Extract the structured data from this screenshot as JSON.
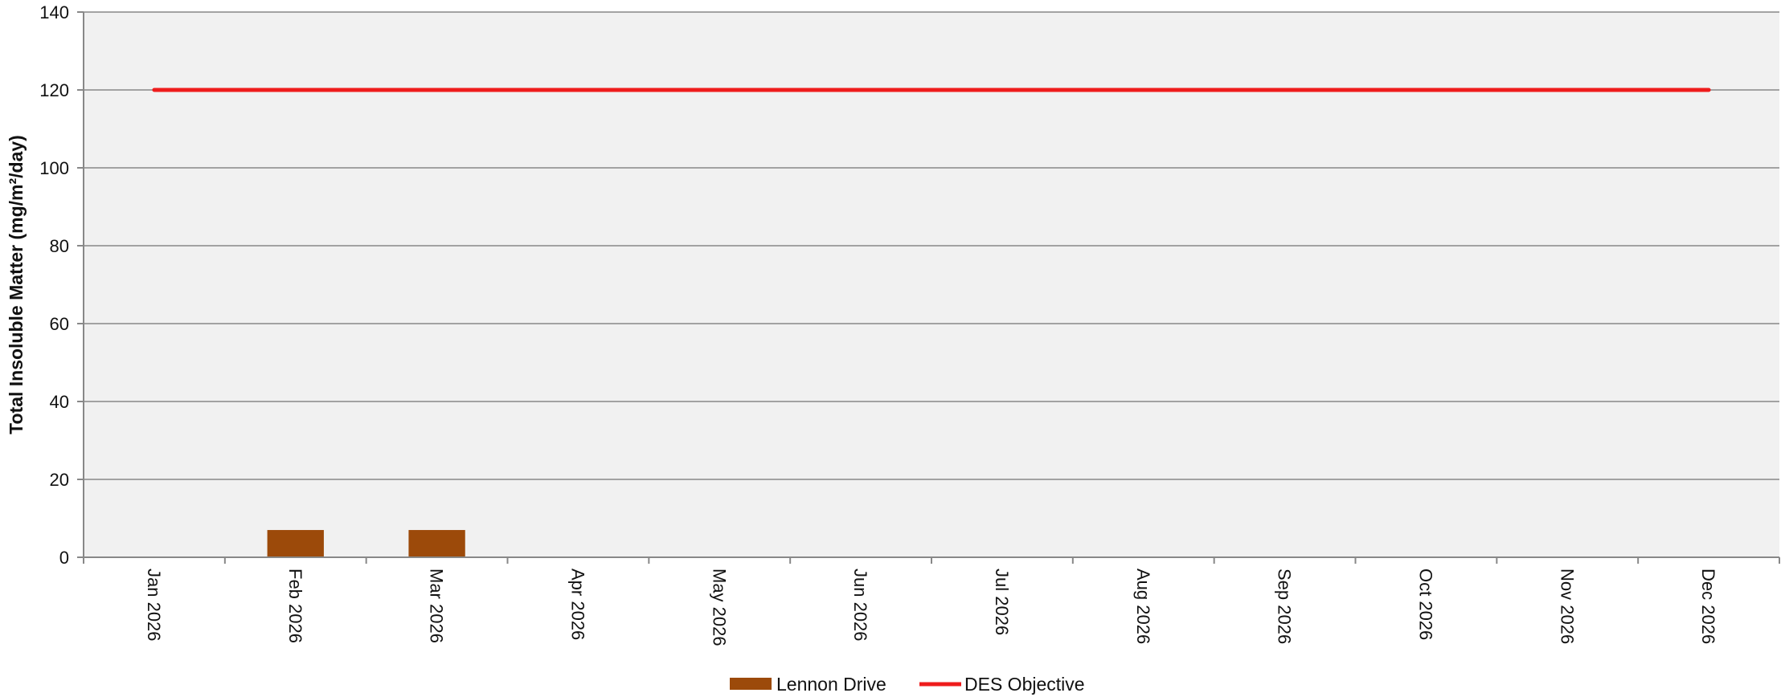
{
  "chart_data": {
    "type": "bar",
    "title": "",
    "xlabel": "",
    "ylabel": "Total Insoluble Matter (mg/m²/day)",
    "ylim": [
      0,
      140
    ],
    "yticks": [
      "0",
      "20",
      "40",
      "60",
      "80",
      "100",
      "120",
      "140"
    ],
    "categories": [
      "Jan 2026",
      "Feb 2026",
      "Mar 2026",
      "Apr 2026",
      "May 2026",
      "Jun 2026",
      "Jul 2026",
      "Aug 2026",
      "Sep 2026",
      "Oct 2026",
      "Nov 2026",
      "Dec 2026"
    ],
    "series": [
      {
        "name": "Lennon Drive",
        "kind": "bar",
        "color": "#9c4a0a",
        "values": [
          null,
          7,
          7,
          null,
          null,
          null,
          null,
          null,
          null,
          null,
          null,
          null
        ]
      },
      {
        "name": "DES Objective",
        "kind": "line",
        "color": "#ee1c1c",
        "values": [
          120,
          120,
          120,
          120,
          120,
          120,
          120,
          120,
          120,
          120,
          120,
          120
        ]
      }
    ],
    "grid": true,
    "legend_position": "bottom",
    "colors": {
      "plot_background": "#f1f1f1",
      "gridline": "#888888"
    }
  }
}
